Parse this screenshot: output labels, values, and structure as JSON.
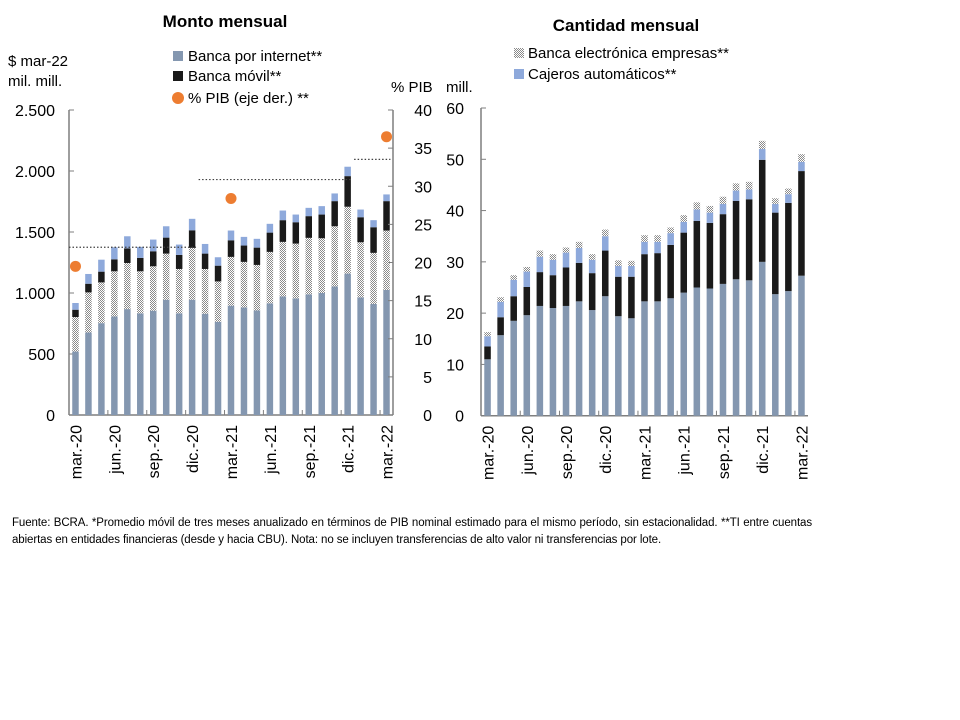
{
  "chart_data": [
    {
      "type": "bar",
      "stacked": true,
      "title": "Monto mensual",
      "ylabel": "$ mar-22\nmil. mill.",
      "ylabel_lines": [
        "$ mar-22",
        "mil. mill."
      ],
      "y2label": "% PIB",
      "ylim": [
        0,
        2500
      ],
      "y2lim": [
        0,
        40
      ],
      "yticks": [
        0,
        500,
        1000,
        1500,
        2000,
        2500
      ],
      "ytick_labels": [
        "0",
        "500",
        "1.000",
        "1.500",
        "2.000",
        "2.500"
      ],
      "y2ticks": [
        0,
        5,
        10,
        15,
        20,
        25,
        30,
        35,
        40
      ],
      "y2tick_labels": [
        "0",
        "5",
        "10",
        "15",
        "20",
        "25",
        "30",
        "35",
        "40"
      ],
      "grid": false,
      "legend": [
        {
          "label": "Banca por internet**",
          "swatch": "square",
          "color": "#8497B0"
        },
        {
          "label": "Banca móvil**",
          "swatch": "square",
          "color": "#1A1A1A"
        },
        {
          "label": "% PIB (eje der.) **",
          "swatch": "circle",
          "color": "#ED7D31"
        }
      ],
      "legend_position": "top-center",
      "categories": [
        "mar-20",
        "abr-20",
        "may-20",
        "jun-20",
        "jul-20",
        "ago-20",
        "sep-20",
        "oct-20",
        "nov-20",
        "dic-20",
        "ene-21",
        "feb-21",
        "mar-21",
        "abr-21",
        "may-21",
        "jun-21",
        "jul-21",
        "ago-21",
        "sep-21",
        "oct-21",
        "nov-21",
        "dic-21",
        "ene-22",
        "feb-22",
        "mar-22"
      ],
      "xtick_labels": [
        "mar.-20",
        "jun.-20",
        "sep.-20",
        "dic.-20",
        "mar.-21",
        "jun.-21",
        "sep.-21",
        "dic.-21",
        "mar.-22"
      ],
      "series": [
        {
          "name": "Banca por internet**",
          "color": "#8497B0",
          "pattern": "solid",
          "values": [
            520,
            676,
            753,
            808,
            868,
            833,
            855,
            945,
            833,
            945,
            830,
            764,
            896,
            882,
            857,
            915,
            972,
            956,
            989,
            1000,
            1054,
            1159,
            964,
            910,
            1025
          ]
        },
        {
          "name": "Banca electrónica empresas**",
          "color": "#A6A6A6",
          "pattern": "hatch",
          "values": [
            283,
            329,
            334,
            370,
            378,
            345,
            364,
            378,
            364,
            425,
            367,
            331,
            400,
            373,
            373,
            422,
            447,
            449,
            463,
            449,
            493,
            548,
            452,
            419,
            487
          ]
        },
        {
          "name": "Banca móvil**",
          "color": "#1A1A1A",
          "pattern": "solid",
          "values": [
            60,
            71,
            88,
            98,
            120,
            110,
            123,
            131,
            115,
            144,
            126,
            129,
            136,
            134,
            142,
            158,
            178,
            175,
            178,
            194,
            206,
            251,
            205,
            210,
            241
          ]
        },
        {
          "name": "Cajeros automáticos**",
          "color": "#8EA9DB",
          "pattern": "solid",
          "values": [
            55,
            80,
            98,
            99,
            99,
            90,
            96,
            93,
            85,
            94,
            79,
            69,
            80,
            71,
            72,
            72,
            79,
            63,
            68,
            69,
            63,
            77,
            63,
            58,
            55
          ]
        }
      ],
      "pib_points": [
        {
          "category": "mar-20",
          "value": 19.5
        },
        {
          "category": "mar-21",
          "value": 28.4
        },
        {
          "category": "mar-22",
          "value": 36.5
        }
      ],
      "reference_lines": [
        {
          "from": "mar-20",
          "to": "dic-20",
          "value": 1375,
          "style": "dotted"
        },
        {
          "from": "ene-21",
          "to": "dic-21",
          "value": 1930,
          "style": "dotted"
        },
        {
          "from": "ene-22",
          "to": "mar-22",
          "value": 2095,
          "style": "dotted"
        }
      ]
    },
    {
      "type": "bar",
      "stacked": true,
      "title": "Cantidad mensual",
      "ylabel": "mill.",
      "ylim": [
        0,
        60
      ],
      "yticks": [
        0,
        10,
        20,
        30,
        40,
        50,
        60
      ],
      "ytick_labels": [
        "0",
        "10",
        "20",
        "30",
        "40",
        "50",
        "60"
      ],
      "grid": false,
      "legend": [
        {
          "label": "Banca electrónica empresas**",
          "swatch": "hatch",
          "color": "#A6A6A6"
        },
        {
          "label": "Cajeros automáticos**",
          "swatch": "square",
          "color": "#8EA9DB"
        }
      ],
      "legend_position": "top-center",
      "categories": [
        "mar-20",
        "abr-20",
        "may-20",
        "jun-20",
        "jul-20",
        "ago-20",
        "sep-20",
        "oct-20",
        "nov-20",
        "dic-20",
        "ene-21",
        "feb-21",
        "mar-21",
        "abr-21",
        "may-21",
        "jun-21",
        "jul-21",
        "ago-21",
        "sep-21",
        "oct-21",
        "nov-21",
        "dic-21",
        "ene-22",
        "feb-22",
        "mar-22"
      ],
      "xtick_labels": [
        "mar.-20",
        "jun.-20",
        "sep.-20",
        "dic.-20",
        "mar.-21",
        "jun.-21",
        "sep.-21",
        "dic.-21",
        "mar.-22"
      ],
      "series": [
        {
          "name": "Banca por internet**",
          "color": "#8497B0",
          "pattern": "solid",
          "values": [
            11.0,
            15.7,
            18.5,
            19.6,
            21.4,
            21.0,
            21.4,
            22.3,
            20.6,
            23.3,
            19.4,
            19.0,
            22.3,
            22.3,
            22.9,
            24.0,
            25.0,
            24.8,
            25.7,
            26.6,
            26.4,
            30.0,
            23.7,
            24.3,
            27.3
          ]
        },
        {
          "name": "Banca móvil**",
          "color": "#1A1A1A",
          "pattern": "solid",
          "values": [
            2.5,
            3.5,
            4.8,
            5.5,
            6.6,
            6.4,
            7.5,
            7.5,
            7.2,
            8.9,
            7.7,
            8.1,
            9.2,
            9.4,
            10.4,
            11.7,
            13.0,
            12.8,
            13.6,
            15.3,
            15.8,
            19.9,
            15.9,
            17.2,
            20.4
          ]
        },
        {
          "name": "Cajeros automáticos**",
          "color": "#8EA9DB",
          "pattern": "solid",
          "values": [
            2.0,
            3.0,
            3.2,
            3.0,
            3.0,
            3.0,
            2.9,
            2.9,
            2.6,
            2.8,
            2.1,
            2.1,
            2.4,
            2.2,
            2.3,
            2.1,
            2.2,
            2.0,
            2.0,
            2.0,
            1.9,
            2.1,
            1.7,
            1.7,
            1.8
          ]
        },
        {
          "name": "Banca electrónica empresas**",
          "color": "#A6A6A6",
          "pattern": "hatch",
          "values": [
            0.8,
            0.9,
            0.9,
            0.9,
            1.2,
            1.1,
            1.0,
            1.2,
            1.1,
            1.3,
            1.1,
            1.0,
            1.3,
            1.3,
            1.1,
            1.3,
            1.4,
            1.3,
            1.4,
            1.4,
            1.5,
            1.6,
            1.1,
            1.1,
            1.5
          ]
        }
      ]
    }
  ],
  "footnote": "Fuente: BCRA. *Promedio móvil de tres meses anualizado en términos de PIB nominal estimado para el mismo período, sin estacionalidad. **TI entre cuentas abiertas en entidades financieras (desde y hacia CBU). Nota: no se incluyen transferencias de alto valor ni transferencias por lote."
}
